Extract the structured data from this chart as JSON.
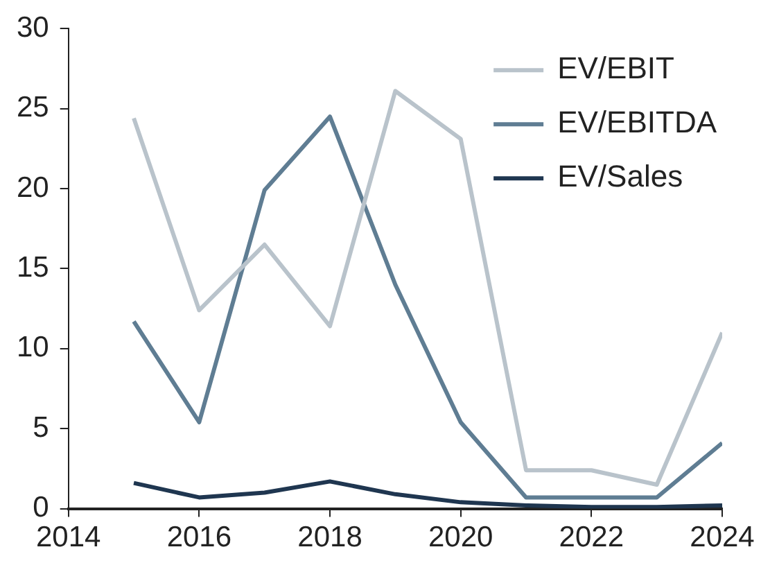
{
  "chart_data": {
    "type": "line",
    "x": [
      2015,
      2016,
      2017,
      2018,
      2019,
      2020,
      2021,
      2022,
      2023,
      2024
    ],
    "xlim": [
      2014,
      2024
    ],
    "xticks": [
      2014,
      2016,
      2018,
      2020,
      2022,
      2024
    ],
    "ylim": [
      0,
      30
    ],
    "yticks": [
      0,
      5,
      10,
      15,
      20,
      25,
      30
    ],
    "grid": false,
    "legend": "top right",
    "marker": "none",
    "line_style": "solid",
    "series": [
      {
        "name": "EV/EBIT",
        "color": "#b9c3cb",
        "values": [
          24.4,
          12.4,
          16.5,
          11.4,
          26.1,
          23.1,
          2.4,
          2.4,
          1.5,
          11.0
        ]
      },
      {
        "name": "EV/EBITDA",
        "color": "#5f7d93",
        "values": [
          11.7,
          5.4,
          19.9,
          24.5,
          14.0,
          5.4,
          0.7,
          0.7,
          0.7,
          4.1
        ]
      },
      {
        "name": "EV/Sales",
        "color": "#1f3650",
        "values": [
          1.6,
          0.7,
          1.0,
          1.7,
          0.9,
          0.4,
          0.2,
          0.1,
          0.1,
          0.2
        ]
      }
    ]
  }
}
